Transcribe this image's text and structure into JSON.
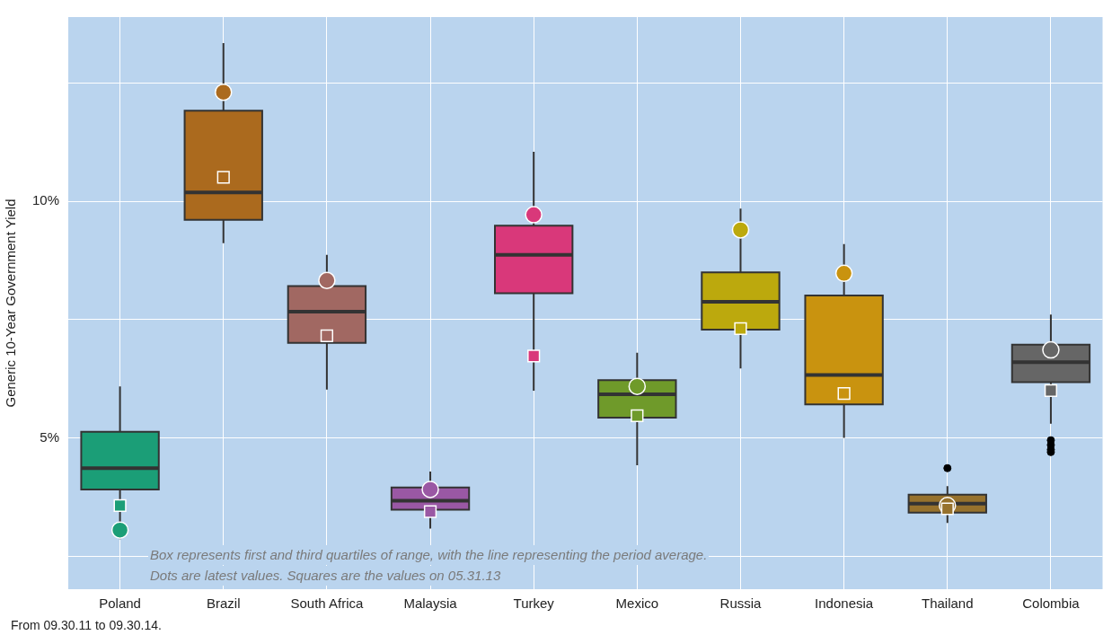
{
  "chart_data": {
    "type": "box",
    "ylabel": "Generic 10-Year Government Yield",
    "categories": [
      "Poland",
      "Brazil",
      "South Africa",
      "Malaysia",
      "Turkey",
      "Mexico",
      "Russia",
      "Indonesia",
      "Thailand",
      "Colombia"
    ],
    "colors": [
      "#1b9e77",
      "#ab6a1e",
      "#a16862",
      "#9a58a4",
      "#d9387a",
      "#6f9a2a",
      "#bca90d",
      "#c9930f",
      "#97722d",
      "#666666"
    ],
    "boxes": [
      {
        "low": 2.86,
        "q1": 3.91,
        "median": 4.36,
        "q3": 5.13,
        "high": 6.09
      },
      {
        "low": 9.12,
        "q1": 9.61,
        "median": 10.19,
        "q3": 11.92,
        "high": 13.35
      },
      {
        "low": 6.02,
        "q1": 7.01,
        "median": 7.67,
        "q3": 8.21,
        "high": 8.87
      },
      {
        "low": 3.08,
        "q1": 3.48,
        "median": 3.67,
        "q3": 3.95,
        "high": 4.29
      },
      {
        "low": 6.0,
        "q1": 8.06,
        "median": 8.87,
        "q3": 9.49,
        "high": 11.05
      },
      {
        "low": 4.42,
        "q1": 5.43,
        "median": 5.92,
        "q3": 6.22,
        "high": 6.8
      },
      {
        "low": 6.47,
        "q1": 7.29,
        "median": 7.88,
        "q3": 8.5,
        "high": 9.85
      },
      {
        "low": 5.0,
        "q1": 5.71,
        "median": 6.33,
        "q3": 8.01,
        "high": 9.1
      },
      {
        "low": 3.2,
        "q1": 3.42,
        "median": 3.61,
        "q3": 3.8,
        "high": 3.98,
        "outliers": [
          4.36
        ]
      },
      {
        "low": 5.3,
        "q1": 6.18,
        "median": 6.6,
        "q3": 6.97,
        "high": 7.61,
        "outliers": [
          4.95,
          4.85,
          4.75,
          4.7
        ]
      }
    ],
    "series": [
      {
        "type": "scatter",
        "marker": "circle",
        "x": [
          "Poland",
          "Brazil",
          "South Africa",
          "Malaysia",
          "Turkey",
          "Mexico",
          "Russia",
          "Indonesia",
          "Thailand",
          "Colombia"
        ],
        "values": [
          3.05,
          12.31,
          8.33,
          3.91,
          9.72,
          6.09,
          9.4,
          8.48,
          3.57,
          6.86
        ],
        "colors": [
          "#1b9e77",
          "#ab6a1e",
          "#a16862",
          "#9a58a4",
          "#d9387a",
          "#6f9a2a",
          "#bca90d",
          "#c9930f",
          "#97722d",
          "#666666"
        ]
      },
      {
        "type": "scatter",
        "marker": "square",
        "x": [
          "Poland",
          "Brazil",
          "South Africa",
          "Malaysia",
          "Turkey",
          "Mexico",
          "Russia",
          "Indonesia",
          "Thailand",
          "Colombia"
        ],
        "values": [
          3.57,
          10.51,
          7.16,
          3.44,
          6.73,
          5.47,
          7.31,
          5.94,
          3.5,
          6.0
        ],
        "colors": [
          "#1b9e77",
          "#ab6a1e",
          "#a16862",
          "#9a58a4",
          "#d9387a",
          "#6f9a2a",
          "#bca90d",
          "#c9930f",
          "#97722d",
          "#666666"
        ]
      }
    ],
    "ylim": [
      1.8,
      13.9
    ],
    "yticks": [
      {
        "value": 2.5,
        "label": null
      },
      {
        "value": 5,
        "label": "5%"
      },
      {
        "value": 7.5,
        "label": null
      },
      {
        "value": 10,
        "label": "10%"
      },
      {
        "value": 12.5,
        "label": null
      }
    ],
    "grid": true,
    "legend": false,
    "annotations": [
      "Box represents first and third quartiles of range, with the line representing the period average.",
      "Dots are latest values. Squares are the values on 05.31.13",
      "From 09.30.11 to 09.30.14."
    ]
  }
}
